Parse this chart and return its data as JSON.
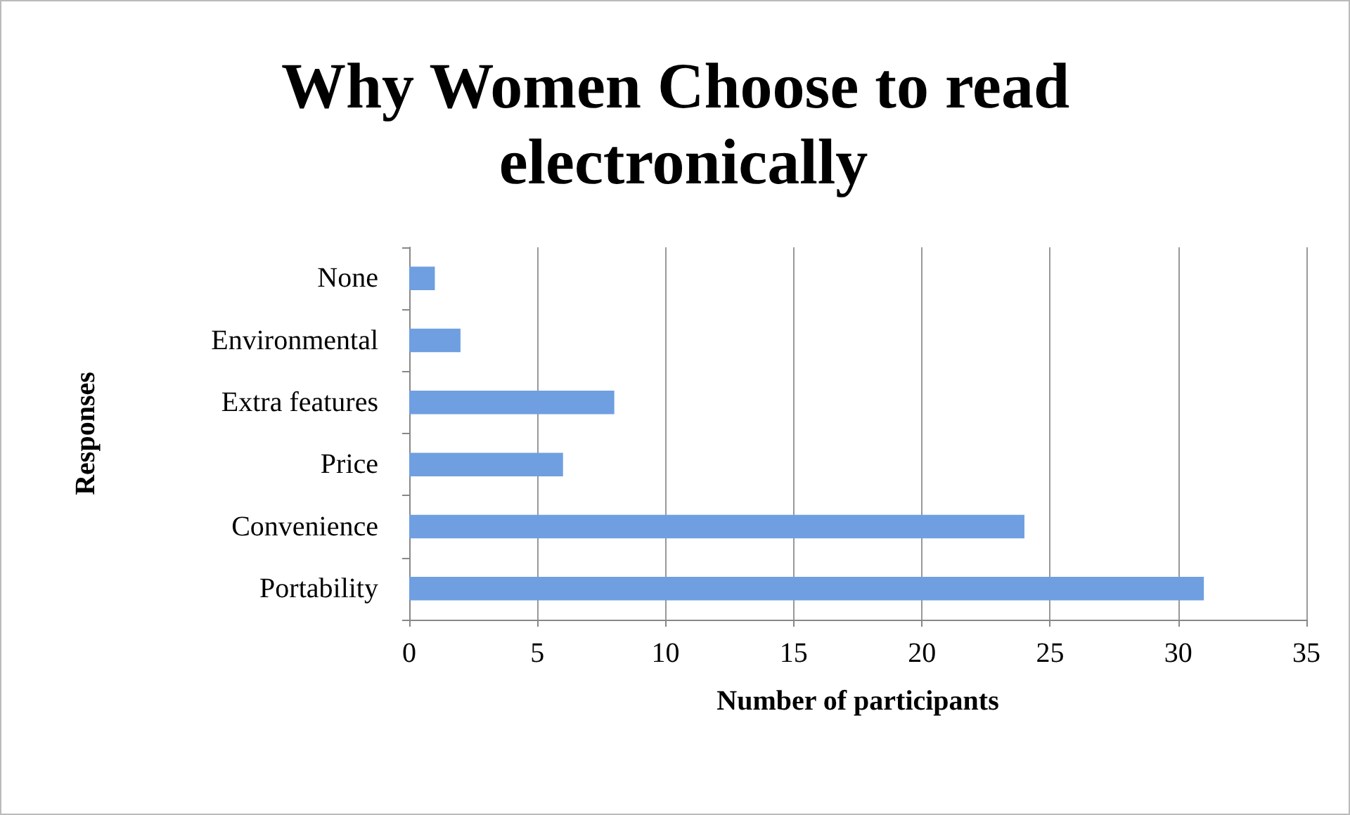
{
  "chart_data": {
    "type": "bar",
    "orientation": "horizontal",
    "title": "Why Women Choose to read electronically",
    "xlabel": "Number of participants",
    "ylabel": "Responses",
    "categories": [
      "None",
      "Environmental",
      "Extra features",
      "Price",
      "Convenience",
      "Portability"
    ],
    "values": [
      1,
      2,
      8,
      6,
      24,
      31
    ],
    "color": "#6f9fe0",
    "xlim": [
      0,
      35
    ],
    "xticks": [
      0,
      5,
      10,
      15,
      20,
      25,
      30,
      35
    ],
    "grid": "x"
  }
}
